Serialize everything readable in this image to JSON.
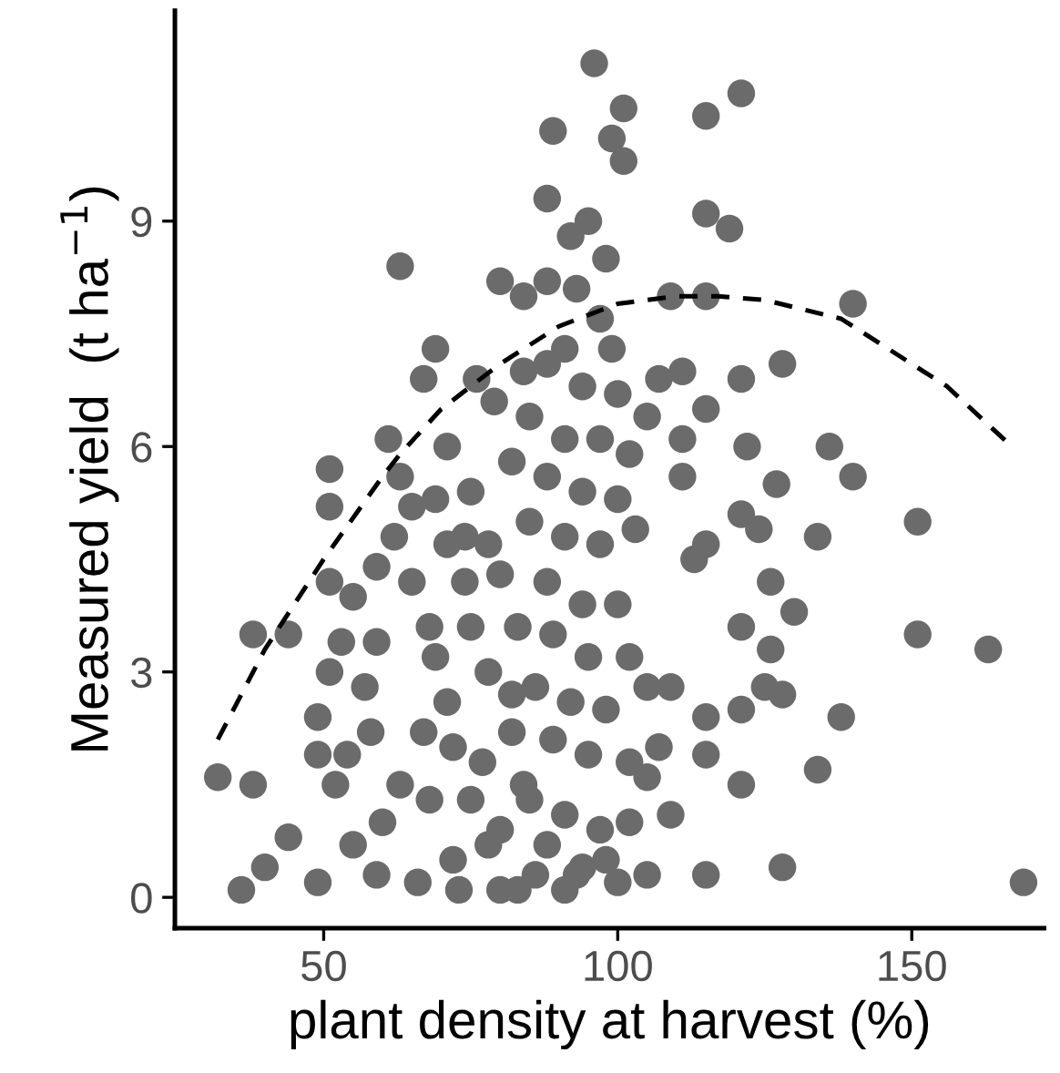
{
  "chart_data": {
    "type": "scatter",
    "xlabel": "plant density at harvest (%)",
    "ylabel": "Measured yield  (t ha$^{−1}$)",
    "xlim": [
      24.7,
      172.5
    ],
    "ylim": [
      -0.41,
      11.8
    ],
    "xticks": [
      50,
      100,
      150
    ],
    "yticks": [
      0,
      3,
      6,
      9
    ],
    "grid": false,
    "series": [
      {
        "color": "#6b6b6b",
        "marker": "circle",
        "x": [
          96,
          101,
          99,
          101,
          89,
          115,
          121,
          115,
          119,
          109,
          115,
          140,
          111,
          107,
          128,
          121,
          115,
          111,
          122,
          136,
          105,
          63,
          80,
          84,
          88,
          69,
          67,
          76,
          79,
          84,
          61,
          71,
          51,
          63,
          51,
          65,
          62,
          59,
          51,
          55,
          38,
          44,
          53,
          59,
          51,
          57,
          49,
          32,
          38,
          49,
          54,
          52,
          44,
          40,
          36,
          49,
          59,
          55,
          60,
          68,
          67,
          71,
          75,
          68,
          74,
          74,
          69,
          78,
          73,
          80,
          78,
          84,
          82,
          86,
          111,
          127,
          140,
          121,
          124,
          134,
          151,
          115,
          113,
          126,
          130,
          121,
          126,
          151,
          163,
          105,
          109,
          125,
          128,
          138,
          121,
          115,
          115,
          107,
          134,
          121,
          105,
          109,
          115,
          128,
          105,
          169,
          98,
          93,
          88,
          92,
          95,
          98,
          93,
          97,
          91,
          99,
          88,
          94,
          100,
          85,
          91,
          97,
          102,
          82,
          88,
          94,
          100,
          85,
          91,
          97,
          103,
          80,
          88,
          94,
          100,
          83,
          89,
          95,
          102,
          78,
          86,
          92,
          98,
          82,
          89,
          95,
          102,
          77,
          85,
          91,
          97,
          102,
          80,
          88,
          94,
          100,
          83,
          91,
          75,
          72,
          69,
          65,
          63,
          58,
          72,
          66,
          75,
          71
        ],
        "values": [
          11.1,
          10.5,
          10.1,
          9.8,
          10.2,
          10.4,
          10.7,
          9.1,
          8.9,
          8.0,
          8.0,
          7.9,
          7.0,
          6.9,
          7.1,
          6.9,
          6.5,
          6.1,
          6.0,
          6.0,
          6.4,
          8.4,
          8.2,
          8.0,
          8.2,
          7.3,
          6.9,
          6.9,
          6.6,
          7.0,
          6.1,
          6.0,
          5.7,
          5.6,
          5.2,
          5.2,
          4.8,
          4.4,
          4.2,
          4.0,
          3.5,
          3.5,
          3.4,
          3.4,
          3.0,
          2.8,
          2.4,
          1.6,
          1.5,
          1.9,
          1.9,
          1.5,
          0.8,
          0.4,
          0.1,
          0.2,
          0.3,
          0.7,
          1.0,
          1.3,
          2.2,
          2.6,
          3.6,
          3.6,
          4.2,
          4.8,
          5.3,
          4.7,
          0.1,
          0.1,
          0.7,
          1.5,
          2.7,
          0.3,
          5.6,
          5.5,
          5.6,
          5.1,
          4.9,
          4.8,
          5.0,
          4.7,
          4.5,
          4.2,
          3.8,
          3.6,
          3.3,
          3.5,
          3.3,
          2.8,
          2.8,
          2.8,
          2.7,
          2.4,
          2.5,
          2.4,
          1.9,
          2.0,
          1.7,
          1.5,
          1.6,
          1.1,
          0.3,
          0.4,
          0.3,
          0.2,
          0.5,
          0.3,
          9.3,
          8.8,
          9.0,
          8.5,
          8.1,
          7.7,
          7.3,
          7.3,
          7.1,
          6.8,
          6.7,
          6.4,
          6.1,
          6.1,
          5.9,
          5.8,
          5.6,
          5.4,
          5.3,
          5.0,
          4.8,
          4.7,
          4.9,
          4.3,
          4.2,
          3.9,
          3.9,
          3.6,
          3.5,
          3.2,
          3.2,
          3.0,
          2.8,
          2.6,
          2.5,
          2.2,
          2.1,
          1.9,
          1.8,
          1.8,
          1.3,
          1.1,
          0.9,
          1.0,
          0.9,
          0.7,
          0.4,
          0.2,
          0.1,
          0.1,
          1.3,
          2.0,
          3.2,
          4.2,
          1.5,
          2.2,
          0.5,
          0.2,
          5.4,
          4.7
        ]
      },
      {
        "type": "line",
        "color": "#000000",
        "line_style": "dashed",
        "marker": "none",
        "x": [
          32,
          40,
          50,
          60,
          63,
          70,
          80,
          90,
          100,
          110,
          117,
          125,
          138,
          146,
          156,
          167
        ],
        "values": [
          2.1,
          3.3,
          4.5,
          5.6,
          5.9,
          6.5,
          7.1,
          7.6,
          7.9,
          8.0,
          8.0,
          7.95,
          7.7,
          7.3,
          6.8,
          6.0
        ]
      }
    ]
  }
}
